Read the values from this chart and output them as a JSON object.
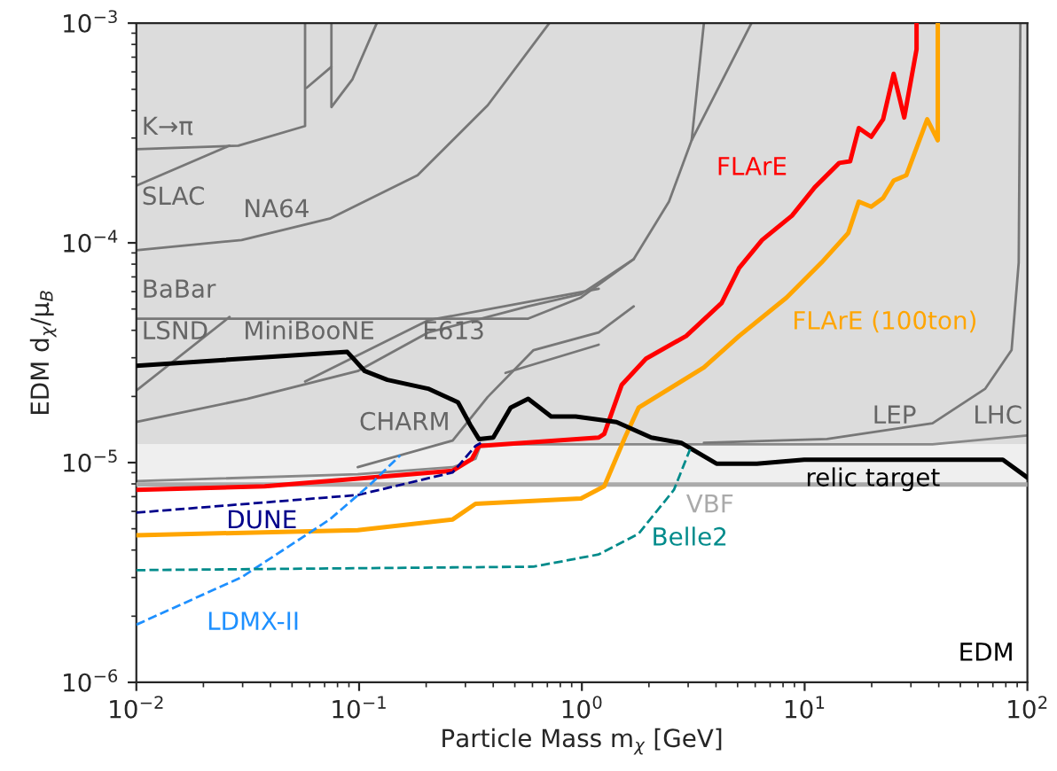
{
  "chart_data": {
    "type": "line",
    "xlabel": "Particle Mass m$_{χ}$ [GeV]",
    "ylabel": "EDM d$_{χ}$/μ$_{B}$",
    "log": "xy",
    "grid": false,
    "legend": false,
    "xlim": [
      0.01,
      100
    ],
    "ylim": [
      1e-06,
      0.001
    ],
    "xticks": [
      {
        "value": 0.01,
        "label": "10$^{−2}$"
      },
      {
        "value": 0.1,
        "label": "10$^{−1}$"
      },
      {
        "value": 1,
        "label": "10$^{0}$"
      },
      {
        "value": 10,
        "label": "10$^{1}$"
      },
      {
        "value": 100,
        "label": "10$^{2}$"
      }
    ],
    "yticks": [
      {
        "value": 1e-06,
        "label": "10$^{−6}$"
      },
      {
        "value": 1e-05,
        "label": "10$^{−5}$"
      },
      {
        "value": 0.0001,
        "label": "10$^{−4}$"
      },
      {
        "value": 0.001,
        "label": "10$^{−3}$"
      }
    ],
    "bands": [
      {
        "axis": "y",
        "from": 1.21e-05,
        "to": 0.001,
        "color": "#dcdcdc"
      },
      {
        "axis": "y",
        "from": 7.94e-06,
        "to": 1.21e-05,
        "color": "#efefef"
      }
    ],
    "series": [
      {
        "color": "#888888",
        "x": [
          0.01,
          0.0986,
          0.263,
          0.333,
          0.352,
          1.19,
          37.5,
          100
        ],
        "values": [
          8.24e-06,
          8.85e-06,
          9.53e-06,
          1.04e-05,
          1.21e-05,
          1.21e-05,
          1.21e-05,
          1.33e-05
        ]
      },
      {
        "name": "VBF",
        "color": "#aaaaaa",
        "x": [
          0.01,
          100
        ],
        "values": [
          7.94e-06,
          7.94e-06
        ]
      },
      {
        "color": "#777777",
        "x": [
          0.01,
          0.0287,
          0.0572,
          0.0572
        ],
        "values": [
          0.000267,
          0.000277,
          0.00034,
          0.001
        ]
      },
      {
        "color": "#777777",
        "x": [
          0.0582,
          0.0751
        ],
        "values": [
          0.000508,
          0.000633
        ]
      },
      {
        "color": "#777777",
        "x": [
          0.0751,
          0.0751,
          0.0934,
          0.12
        ],
        "values": [
          0.001,
          0.000415,
          0.000556,
          0.001
        ]
      },
      {
        "color": "#777777",
        "x": [
          0.01,
          0.0262
        ],
        "values": [
          0.000182,
          0.000277
        ]
      },
      {
        "color": "#777777",
        "x": [
          0.01,
          0.0297,
          0.0738,
          0.183,
          0.378,
          0.714
        ],
        "values": [
          9.25e-05,
          0.000103,
          0.000129,
          0.000203,
          0.000423,
          0.001
        ]
      },
      {
        "color": "#777777",
        "x": [
          0.01,
          0.574,
          0.991,
          1.71,
          2.46,
          3.11,
          5.77
        ],
        "values": [
          4.52e-05,
          4.52e-05,
          5.64e-05,
          8.44e-05,
          0.000154,
          0.000293,
          0.001
        ]
      },
      {
        "color": "#777777",
        "x": [
          3.11,
          3.53
        ],
        "values": [
          0.000293,
          0.001
        ]
      },
      {
        "color": "#777777",
        "x": [
          0.01,
          0.0262
        ],
        "values": [
          2.13e-05,
          4.6e-05
        ]
      },
      {
        "color": "#777777",
        "x": [
          0.01,
          0.0314,
          0.0986,
          0.204,
          0.574,
          0.991,
          1.71
        ],
        "values": [
          1.53e-05,
          1.95e-05,
          2.61e-05,
          3.91e-05,
          5.14e-05,
          5.85e-05,
          8.44e-05
        ]
      },
      {
        "color": "#777777",
        "x": [
          0.0572,
          0.204,
          1.19
        ],
        "values": [
          2.34e-05,
          4.44e-05,
          6.18e-05
        ]
      },
      {
        "color": "#777777",
        "x": [
          0.0986,
          0.263,
          0.378,
          0.607,
          1.19,
          1.71
        ],
        "values": [
          9.53e-06,
          1.26e-05,
          1.99e-05,
          3.25e-05,
          3.91e-05,
          5.14e-05
        ]
      },
      {
        "color": "#777777",
        "x": [
          0.454,
          1.19
        ],
        "values": [
          2.56e-05,
          3.44e-05
        ]
      },
      {
        "color": "#777777",
        "x": [
          93.0,
          91.4,
          84.9,
          64.7,
          37.5,
          12.6,
          3.53
        ],
        "values": [
          0.001,
          8.13e-05,
          3.25e-05,
          2.17e-05,
          1.51e-05,
          1.28e-05,
          1.23e-05
        ]
      },
      {
        "name": "FLArE",
        "color": "#ff0000",
        "x": [
          0.01,
          0.0377,
          0.263,
          0.321,
          0.345,
          1.19,
          1.26,
          1.51,
          1.94,
          2.94,
          4.24,
          5.08,
          6.44,
          8.77,
          11.1,
          14.3,
          16.0,
          17.5,
          19.9,
          22.5,
          25.1,
          28.0,
          31.8,
          31.8
        ],
        "values": [
          7.52e-06,
          7.8e-06,
          9.18e-06,
          1.04e-05,
          1.19e-05,
          1.3e-05,
          1.35e-05,
          2.26e-05,
          2.97e-05,
          3.77e-05,
          5.33e-05,
          7.69e-05,
          0.000103,
          0.000133,
          0.000179,
          0.000231,
          0.000235,
          0.000333,
          0.000304,
          0.000365,
          0.000588,
          0.000372,
          0.00076,
          0.001
        ]
      },
      {
        "name": "FLArE (100ton)",
        "color": "#ffa500",
        "x": [
          0.01,
          0.0986,
          0.263,
          0.333,
          0.991,
          1.26,
          1.56,
          1.8,
          3.53,
          5.08,
          8.3,
          11.9,
          15.7,
          17.5,
          19.9,
          22.5,
          25.1,
          28.6,
          35.5,
          39.6,
          39.6
        ],
        "values": [
          4.67e-06,
          4.93e-06,
          5.51e-06,
          6.49e-06,
          6.86e-06,
          7.8e-06,
          1.3e-05,
          1.78e-05,
          2.71e-05,
          3.77e-05,
          5.64e-05,
          8.13e-05,
          0.000111,
          0.000154,
          0.000146,
          0.00016,
          0.000192,
          0.000203,
          0.000365,
          0.000293,
          0.001
        ]
      },
      {
        "name": "relic target",
        "color": "#000000",
        "x": [
          0.01,
          0.0885,
          0.106,
          0.134,
          0.204,
          0.278,
          0.316,
          0.345,
          0.4,
          0.479,
          0.574,
          0.728,
          0.938,
          1.43,
          2.05,
          2.79,
          4.02,
          6.1,
          9.95,
          77.6,
          100
        ],
        "values": [
          2.76e-05,
          3.19e-05,
          2.61e-05,
          2.38e-05,
          2.17e-05,
          1.88e-05,
          1.48e-05,
          1.28e-05,
          1.3e-05,
          1.78e-05,
          1.95e-05,
          1.62e-05,
          1.62e-05,
          1.53e-05,
          1.3e-05,
          1.23e-05,
          9.89e-06,
          9.89e-06,
          1.03e-05,
          1.03e-05,
          8.55e-06
        ]
      },
      {
        "name": "DUNE",
        "color": "#00008b",
        "line_style": "dashed",
        "x": [
          0.01,
          0.0986,
          0.263,
          0.333,
          0.352
        ],
        "values": [
          5.92e-06,
          7.12e-06,
          9.02e-06,
          1.19e-05,
          1.23e-05
        ]
      },
      {
        "name": "LDMX-II",
        "color": "#1e90ff",
        "line_style": "dashed",
        "x": [
          0.01,
          0.0297,
          0.0738,
          0.112,
          0.153
        ],
        "values": [
          1.83e-06,
          3.01e-06,
          5.51e-06,
          7.94e-06,
          1.08e-05
        ]
      },
      {
        "name": "Belle2",
        "color": "#008b8b",
        "line_style": "dashed",
        "x": [
          0.01,
          0.607,
          1.19,
          1.8,
          2.59,
          3.06
        ],
        "values": [
          3.24e-06,
          3.36e-06,
          3.82e-06,
          4.75e-06,
          7.52e-06,
          1.15e-05
        ]
      }
    ],
    "annotations": [
      "K→π",
      "SLAC",
      "NA64",
      "BaBar",
      "LSND",
      "MiniBooNE",
      "E613",
      "CHARM",
      "LEP",
      "LHC",
      "EDM"
    ]
  }
}
